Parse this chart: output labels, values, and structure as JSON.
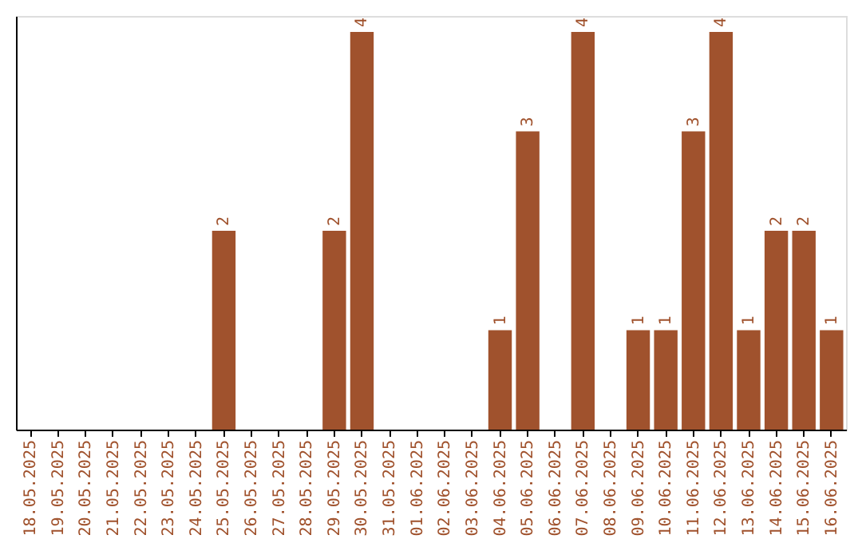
{
  "chart_data": {
    "type": "bar",
    "categories": [
      "18.05.2025",
      "19.05.2025",
      "20.05.2025",
      "21.05.2025",
      "22.05.2025",
      "23.05.2025",
      "24.05.2025",
      "25.05.2025",
      "26.05.2025",
      "27.05.2025",
      "28.05.2025",
      "29.05.2025",
      "30.05.2025",
      "31.05.2025",
      "01.06.2025",
      "02.06.2025",
      "03.06.2025",
      "04.06.2025",
      "05.06.2025",
      "06.06.2025",
      "07.06.2025",
      "08.06.2025",
      "09.06.2025",
      "10.06.2025",
      "11.06.2025",
      "12.06.2025",
      "13.06.2025",
      "14.06.2025",
      "15.06.2025",
      "16.06.2025"
    ],
    "values": [
      0,
      0,
      0,
      0,
      0,
      0,
      0,
      2,
      0,
      0,
      0,
      2,
      4,
      0,
      0,
      0,
      0,
      1,
      3,
      0,
      4,
      0,
      1,
      1,
      3,
      4,
      1,
      2,
      2,
      1
    ],
    "value_labels": [
      null,
      null,
      null,
      null,
      null,
      null,
      null,
      "2",
      null,
      null,
      null,
      "2",
      "4",
      null,
      null,
      null,
      null,
      "1",
      "3",
      null,
      "4",
      null,
      "1",
      "1",
      "3",
      "4",
      "1",
      "2",
      "2",
      "1"
    ],
    "color": "#a0522d",
    "grid": false,
    "tick_labels": "x"
  }
}
